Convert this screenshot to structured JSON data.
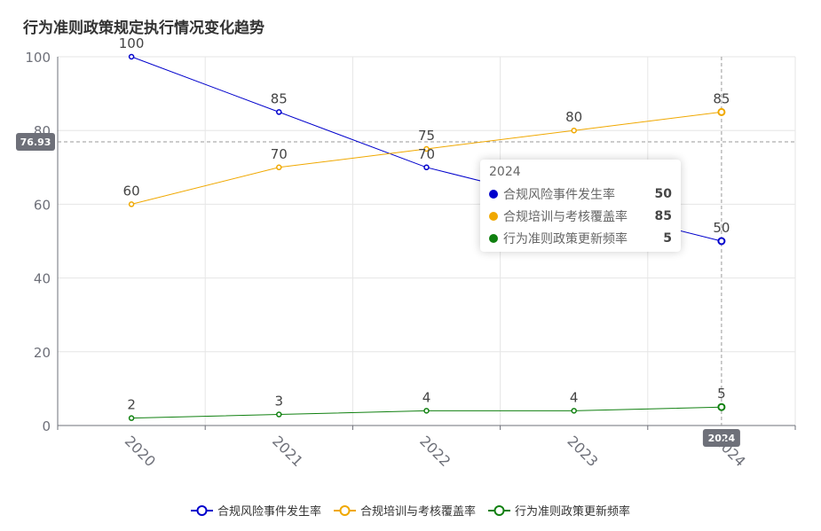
{
  "chart_data": {
    "type": "line",
    "title": "行为准则政策规定执行情况变化趋势",
    "categories": [
      "2020",
      "2021",
      "2022",
      "2023",
      "2024"
    ],
    "ylim": [
      0,
      100
    ],
    "yticks": [
      "0",
      "20",
      "40",
      "60",
      "80",
      "100"
    ],
    "series": [
      {
        "name": "合规风险事件发生率",
        "color": "#0000cc",
        "values": [
          100,
          85,
          70,
          60,
          50
        ],
        "labels": [
          "100",
          "85",
          "70",
          "",
          "50"
        ]
      },
      {
        "name": "合规培训与考核覆盖率",
        "color": "#f0a800",
        "values": [
          60,
          70,
          75,
          80,
          85
        ],
        "labels": [
          "60",
          "70",
          "75",
          "80",
          "85"
        ]
      },
      {
        "name": "行为准则政策更新频率",
        "color": "#108010",
        "values": [
          2,
          3,
          4,
          4,
          5
        ],
        "labels": [
          "2",
          "3",
          "4",
          "4",
          "5"
        ]
      }
    ],
    "legend_position": "bottom-center",
    "grid": true,
    "crosshair": {
      "y_value": 76.93,
      "y_label": "76.93",
      "x_category": "2024",
      "x_label": "2024"
    }
  },
  "tooltip": {
    "title": "2024",
    "rows": [
      {
        "name": "合规风险事件发生率",
        "value": "50",
        "color": "#0000cc"
      },
      {
        "name": "合规培训与考核覆盖率",
        "value": "85",
        "color": "#f0a800"
      },
      {
        "name": "行为准则政策更新频率",
        "value": "5",
        "color": "#108010"
      }
    ]
  }
}
